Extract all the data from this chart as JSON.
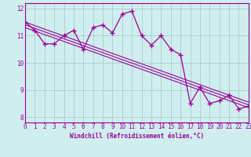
{
  "x": [
    0,
    1,
    2,
    3,
    4,
    5,
    6,
    7,
    8,
    9,
    10,
    11,
    12,
    13,
    14,
    15,
    16,
    17,
    18,
    19,
    20,
    21,
    22,
    23
  ],
  "y_main": [
    11.5,
    11.2,
    10.7,
    10.7,
    11.0,
    11.2,
    10.5,
    11.3,
    11.4,
    11.1,
    11.8,
    11.9,
    11.0,
    10.65,
    11.0,
    10.5,
    10.3,
    8.5,
    9.1,
    8.5,
    8.6,
    8.8,
    8.3,
    8.4
  ],
  "y_reg1_start": 11.5,
  "y_reg1_end": 8.55,
  "y_reg2_start": 11.4,
  "y_reg2_end": 8.45,
  "y_reg3_start": 11.3,
  "y_reg3_end": 8.35,
  "color": "#990099",
  "bg_color": "#d0eeee",
  "grid_color": "#aacccc",
  "xlabel": "Windchill (Refroidissement éolien,°C)",
  "xlim": [
    0,
    23
  ],
  "ylim": [
    7.8,
    12.2
  ],
  "yticks": [
    8,
    9,
    10,
    11,
    12
  ],
  "xticks": [
    0,
    1,
    2,
    3,
    4,
    5,
    6,
    7,
    8,
    9,
    10,
    11,
    12,
    13,
    14,
    15,
    16,
    17,
    18,
    19,
    20,
    21,
    22,
    23
  ]
}
